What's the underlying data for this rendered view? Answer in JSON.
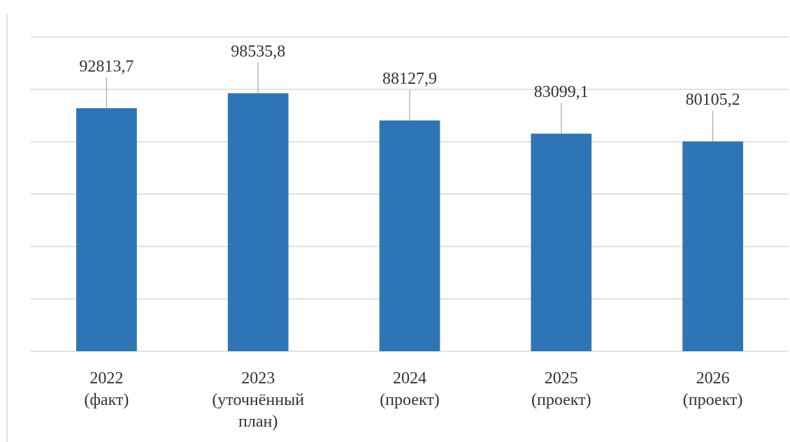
{
  "chart_data": {
    "type": "bar",
    "categories": [
      "2022\n(факт)",
      "2023\n(уточнённый\nплан)",
      "2024\n(проект)",
      "2025\n(проект)",
      "2026\n(проект)"
    ],
    "values": [
      92813.7,
      98535.8,
      88127.9,
      83099.1,
      80105.2
    ],
    "value_labels": [
      "92813,7",
      "98535,8",
      "88127,9",
      "83099,1",
      "80105,2"
    ],
    "color": "#2e75b6",
    "ylim": [
      0,
      120000
    ],
    "yticks": [
      0,
      20000,
      40000,
      60000,
      80000,
      100000,
      120000
    ],
    "grid": true
  }
}
